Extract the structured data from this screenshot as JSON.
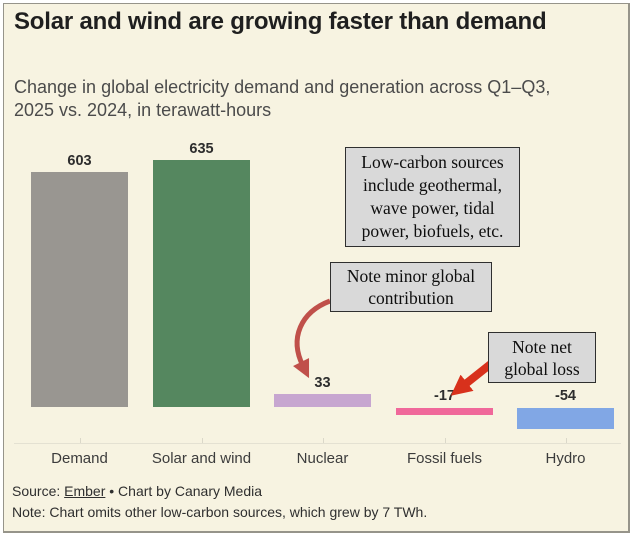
{
  "title": "Solar and wind are growing faster than demand",
  "subtitle": "Change in global electricity demand and generation across Q1–Q3, 2025 vs. 2024, in terawatt-hours",
  "chart_data": {
    "type": "bar",
    "title": "Solar and wind are growing faster than demand",
    "unit": "TWh",
    "categories": [
      "Demand",
      "Solar and wind",
      "Nuclear",
      "Fossil fuels",
      "Hydro"
    ],
    "values": [
      603,
      635,
      33,
      -17,
      -54
    ],
    "bar_colors": [
      "#999691",
      "#55875f",
      "#c7a6d0",
      "#f0689a",
      "#81a7e5"
    ],
    "value_labels": [
      "603",
      "635",
      "33",
      "-17",
      "-54"
    ],
    "baseline": 0,
    "ylim": [
      -60,
      660
    ],
    "grid": false,
    "legend": "none",
    "value_labels_shown": true
  },
  "annotations": {
    "low_carbon": {
      "lines": [
        "Low-carbon sources",
        "include geothermal,",
        "wave power, tidal",
        "power, biofuels, etc."
      ]
    },
    "minor_global": {
      "lines": [
        "Note minor global",
        "contribution"
      ]
    },
    "net_loss": {
      "lines": [
        "Note net",
        "global loss"
      ]
    }
  },
  "footer": {
    "source_prefix": "Source: ",
    "source_link": "Ember",
    "source_suffix": " • Chart by Canary Media",
    "note": "Note: Chart omits other low-carbon sources, which grew by 7 TWh."
  },
  "colors": {
    "background": "#f7f3e1",
    "card_border": "#96948a",
    "annotation_box_bg": "#d9d9d9",
    "annotation_box_border": "#2f2f2f",
    "arrow_curved": "#c0504a",
    "arrow_straight": "#d8311c",
    "axis_line": "#e4e1d2",
    "title_text": "#1f1f1f",
    "subtitle_text": "#4b4b4b"
  }
}
